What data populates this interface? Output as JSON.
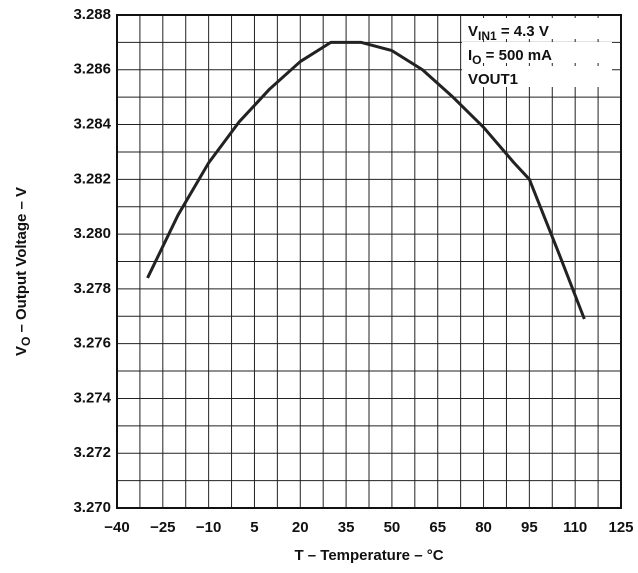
{
  "chart_data": {
    "type": "line",
    "x_label": [
      {
        "text": "T – Temperature – °C"
      }
    ],
    "y_label": [
      {
        "text": "V"
      },
      {
        "text": "O",
        "sub": true
      },
      {
        "text": " – Output Voltage – V"
      }
    ],
    "annotations": [
      [
        {
          "text": "V"
        },
        {
          "text": "IN1",
          "sub": true
        },
        {
          "text": " = 4.3 V"
        }
      ],
      [
        {
          "text": "I"
        },
        {
          "text": "O",
          "sub": true
        },
        {
          "text": " = 500 mA"
        }
      ],
      [
        {
          "text": "VOUT1"
        }
      ]
    ],
    "x": [
      -30,
      -20,
      -10,
      0,
      10,
      20,
      30,
      40,
      50,
      60,
      70,
      80,
      90,
      95,
      100,
      105,
      113
    ],
    "series": [
      {
        "color": "#222222",
        "values": [
          3.2784,
          3.2807,
          3.2826,
          3.2841,
          3.2853,
          3.2863,
          3.287,
          3.287,
          3.2867,
          3.286,
          3.285,
          3.2839,
          3.2826,
          3.282,
          3.2806,
          3.2792,
          3.2769
        ]
      }
    ],
    "xlim": [
      -40,
      125
    ],
    "xticks": [
      {
        "value": -40,
        "label": "−40"
      },
      {
        "value": -25,
        "label": "−25"
      },
      {
        "value": -10,
        "label": "−10"
      },
      5,
      20,
      35,
      50,
      65,
      80,
      95,
      110,
      125
    ],
    "ylim": [
      3.27,
      3.288
    ],
    "yticks": [
      {
        "value": 3.27,
        "label": "3.270"
      },
      3.272,
      3.274,
      3.276,
      3.278,
      {
        "value": 3.28,
        "label": "3.280"
      },
      3.282,
      3.284,
      3.286,
      3.288
    ],
    "grid": true,
    "minor_grid": true
  }
}
